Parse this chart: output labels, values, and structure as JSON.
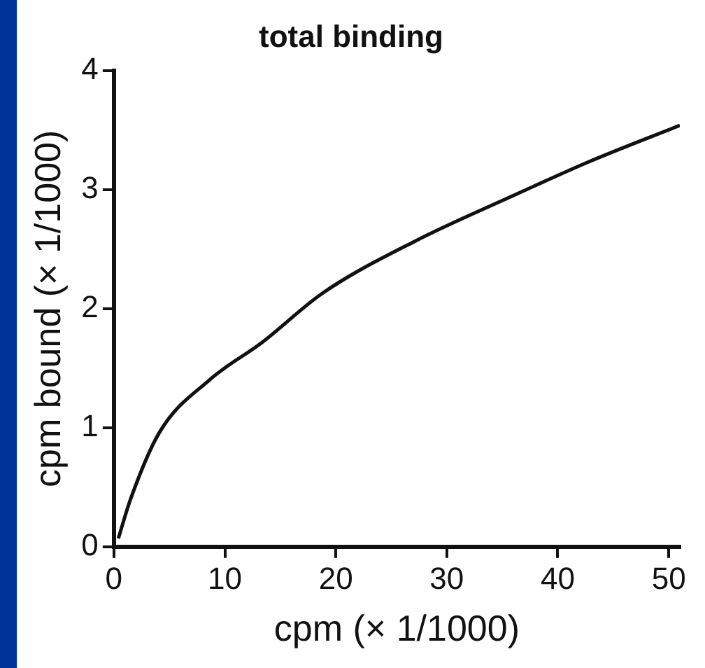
{
  "chart_data": {
    "type": "line",
    "title": "total binding",
    "xlabel": "cpm (× 1/1000)",
    "ylabel": "cpm bound (× 1/1000)",
    "series": [
      {
        "color": "#111111",
        "x": [
          0.4,
          1.5,
          4.1,
          8.6,
          13.4,
          18.8,
          27.2,
          36,
          42.7,
          51
        ],
        "values": [
          0.07,
          0.4,
          0.96,
          1.4,
          1.72,
          2.13,
          2.57,
          2.95,
          3.23,
          3.54
        ]
      }
    ],
    "xlim": [
      0,
      51
    ],
    "xticks": [
      0,
      10,
      20,
      30,
      40,
      50
    ],
    "ylim": [
      0,
      4
    ],
    "yticks": [
      0,
      1,
      2,
      3,
      4
    ],
    "grid": false,
    "legend": false,
    "marker": "none",
    "line_style": "solid"
  }
}
